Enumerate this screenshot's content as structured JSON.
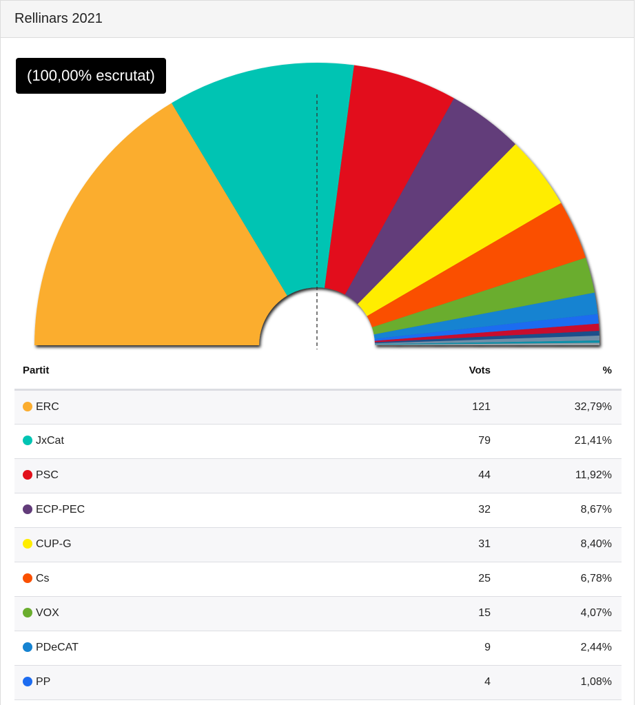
{
  "header": {
    "title": "Rellinars 2021"
  },
  "chart": {
    "counted_label": "(100,00% escrutat)"
  },
  "table": {
    "headers": {
      "party": "Partit",
      "votes": "Vots",
      "pct": "%"
    },
    "rows": [
      {
        "party": "ERC",
        "votes": "121",
        "pct": "32,79%",
        "color": "#fbad2f"
      },
      {
        "party": "JxCat",
        "votes": "79",
        "pct": "21,41%",
        "color": "#00c4b3"
      },
      {
        "party": "PSC",
        "votes": "44",
        "pct": "11,92%",
        "color": "#e2101b"
      },
      {
        "party": "ECP-PEC",
        "votes": "32",
        "pct": "8,67%",
        "color": "#623c7a"
      },
      {
        "party": "CUP-G",
        "votes": "31",
        "pct": "8,40%",
        "color": "#ffed00"
      },
      {
        "party": "Cs",
        "votes": "25",
        "pct": "6,78%",
        "color": "#fa5000"
      },
      {
        "party": "VOX",
        "votes": "15",
        "pct": "4,07%",
        "color": "#6aad2e"
      },
      {
        "party": "PDeCAT",
        "votes": "9",
        "pct": "2,44%",
        "color": "#1683d1"
      },
      {
        "party": "PP",
        "votes": "4",
        "pct": "1,08%",
        "color": "#1d6cf0"
      }
    ]
  },
  "chart_data": {
    "type": "pie",
    "shape": "semicircle",
    "title": "Rellinars 2021",
    "counted": "100,00% escrutat",
    "series": [
      {
        "name": "ERC",
        "value": 121,
        "percent": 32.79,
        "color": "#fbad2f"
      },
      {
        "name": "JxCat",
        "value": 79,
        "percent": 21.41,
        "color": "#00c4b3"
      },
      {
        "name": "PSC",
        "value": 44,
        "percent": 11.92,
        "color": "#e2101b"
      },
      {
        "name": "ECP-PEC",
        "value": 32,
        "percent": 8.67,
        "color": "#623c7a"
      },
      {
        "name": "CUP-G",
        "value": 31,
        "percent": 8.4,
        "color": "#ffed00"
      },
      {
        "name": "Cs",
        "value": 25,
        "percent": 6.78,
        "color": "#fa5000"
      },
      {
        "name": "VOX",
        "value": 15,
        "percent": 4.07,
        "color": "#6aad2e"
      },
      {
        "name": "PDeCAT",
        "value": 9,
        "percent": 2.44,
        "color": "#1683d1"
      },
      {
        "name": "PP",
        "value": 4,
        "percent": 1.08,
        "color": "#1d6cf0"
      },
      {
        "value": 3,
        "color": "#c8102e"
      },
      {
        "value": 2,
        "color": "#1a4f8b"
      },
      {
        "value": 2,
        "color": "#6f8fa8"
      },
      {
        "value": 1,
        "color": "#0b8fa8"
      },
      {
        "value": 1,
        "color": "#9aa0a6"
      }
    ],
    "midline": true
  }
}
